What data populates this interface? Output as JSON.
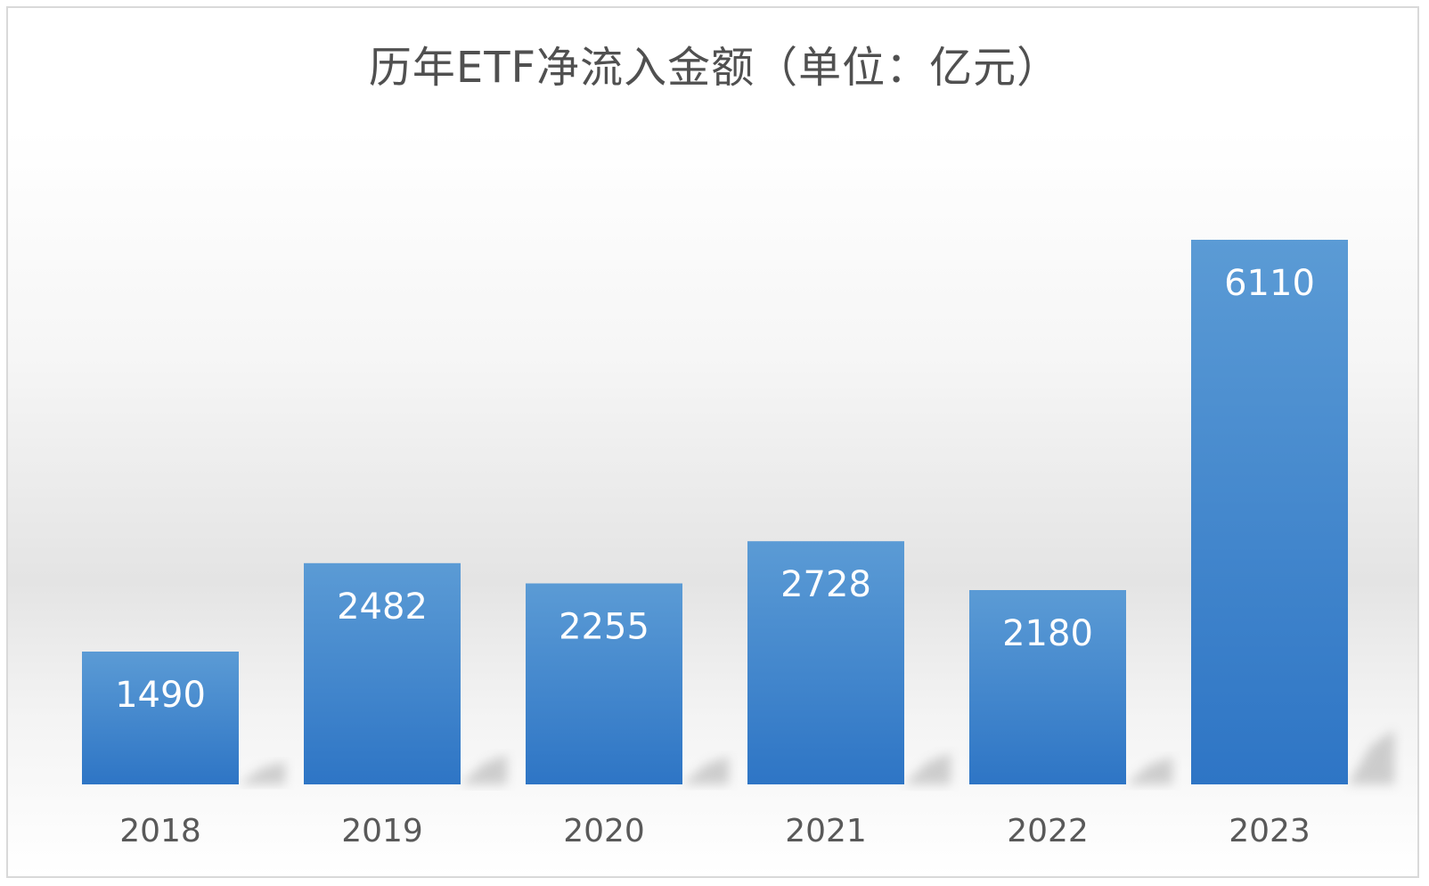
{
  "chart_data": {
    "type": "bar",
    "title": "历年ETF净流入金额（单位：亿元）",
    "categories": [
      "2018",
      "2019",
      "2020",
      "2021",
      "2022",
      "2023"
    ],
    "values": [
      1490,
      2482,
      2255,
      2728,
      2180,
      6110
    ],
    "xlabel": "",
    "ylabel": "",
    "ylim": [
      0,
      8000
    ],
    "grid": false,
    "legend": "none",
    "data_labels": "inside-top",
    "colors": {
      "bar_top": "#5b9bd5",
      "bar_bottom": "#2e75c5",
      "label": "#ffffff",
      "tick": "#595959",
      "title": "#505050"
    }
  }
}
